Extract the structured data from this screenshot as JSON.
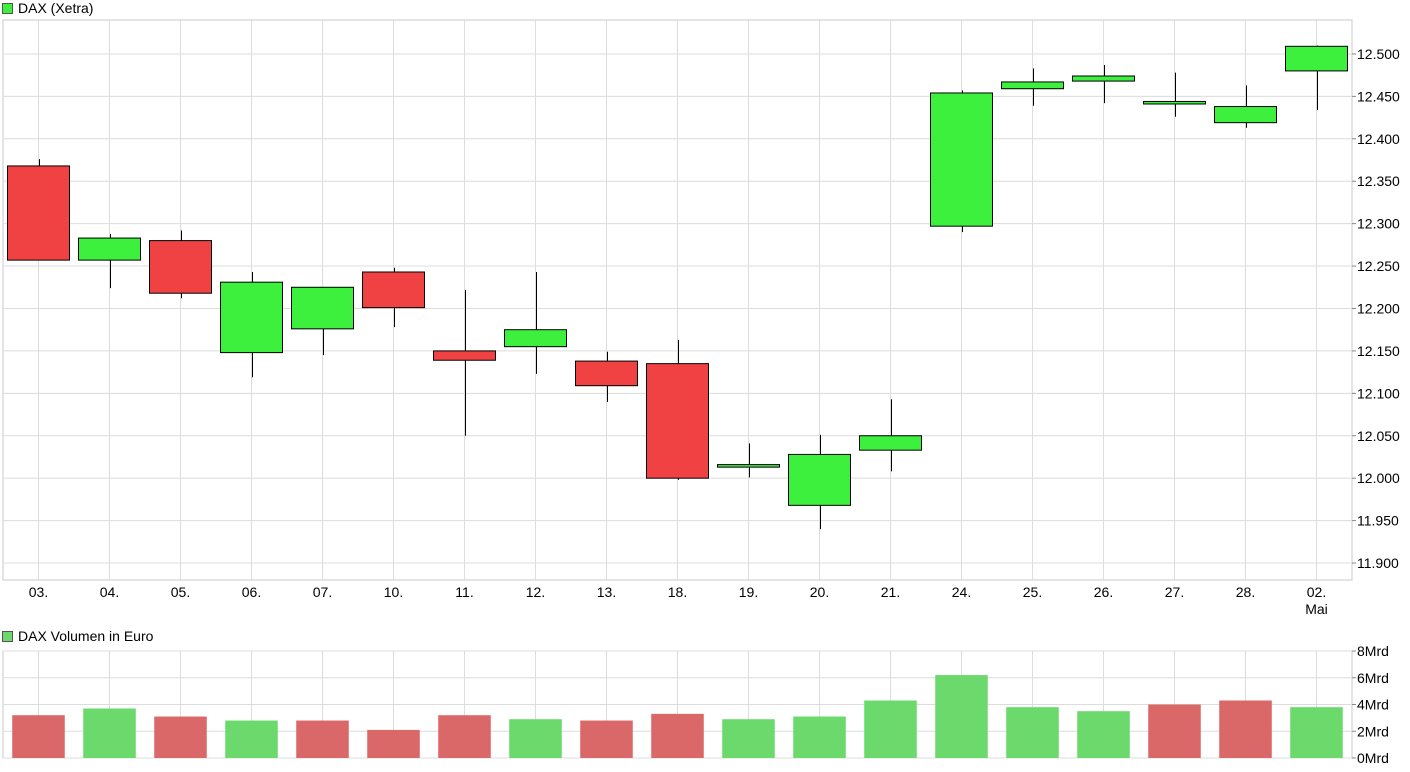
{
  "price_panel": {
    "title": "DAX (Xetra)",
    "legend_color": "#3ef03e"
  },
  "volume_panel": {
    "title": "DAX Volumen in Euro",
    "legend_color": "#6cd96c"
  },
  "colors": {
    "up": "#3ef03e",
    "down": "#f04242",
    "volume_up": "#6cd96c",
    "volume_down": "#db6868",
    "grid": "#dcdcdc",
    "frame": "#c8c8c8"
  },
  "chart_data": [
    {
      "type": "candlestick",
      "title": "DAX (Xetra)",
      "categories": [
        "03.",
        "04.",
        "05.",
        "06.",
        "07.",
        "10.",
        "11.",
        "12.",
        "13.",
        "18.",
        "19.",
        "20.",
        "21.",
        "24.",
        "25.",
        "26.",
        "27.",
        "28.",
        "02."
      ],
      "category_sublabels": [
        "",
        "",
        "",
        "",
        "",
        "",
        "",
        "",
        "",
        "",
        "",
        "",
        "",
        "",
        "",
        "",
        "",
        "",
        "Mai"
      ],
      "y_ticks": [
        "11.900",
        "11.950",
        "12.000",
        "12.050",
        "12.100",
        "12.150",
        "12.200",
        "12.250",
        "12.300",
        "12.350",
        "12.400",
        "12.450",
        "12.500"
      ],
      "ylim": [
        11880,
        12540
      ],
      "y_tick_values": [
        11900,
        11950,
        12000,
        12050,
        12100,
        12150,
        12200,
        12250,
        12300,
        12350,
        12400,
        12450,
        12500
      ],
      "grid": true,
      "series": [
        {
          "open": [
            12368,
            12257,
            12280,
            12148,
            12176,
            12243,
            12150,
            12155,
            12138,
            12135,
            12013,
            11968,
            12033,
            12297,
            12459,
            12468,
            12441,
            12419,
            12480
          ],
          "high": [
            12376,
            12288,
            12292,
            12243,
            12225,
            12248,
            12222,
            12243,
            12149,
            12163,
            12041,
            12051,
            12093,
            12457,
            12483,
            12487,
            12478,
            12463,
            12510
          ],
          "low": [
            12257,
            12224,
            12212,
            12119,
            12145,
            12178,
            12050,
            12123,
            12090,
            11998,
            12001,
            11940,
            12008,
            12290,
            12439,
            12442,
            12426,
            12413,
            12434
          ],
          "close": [
            12257,
            12283,
            12218,
            12231,
            12225,
            12201,
            12139,
            12175,
            12109,
            12000,
            12016,
            12028,
            12050,
            12454,
            12467,
            12474,
            12444,
            12438,
            12509
          ]
        }
      ]
    },
    {
      "type": "bar",
      "title": "DAX Volumen in Euro",
      "unit": "Mrd",
      "categories": [
        "03.",
        "04.",
        "05.",
        "06.",
        "07.",
        "10.",
        "11.",
        "12.",
        "13.",
        "18.",
        "19.",
        "20.",
        "21.",
        "24.",
        "25.",
        "26.",
        "27.",
        "28.",
        "02."
      ],
      "values": [
        3.2,
        3.7,
        3.1,
        2.8,
        2.8,
        2.1,
        3.2,
        2.9,
        2.8,
        3.3,
        2.9,
        3.1,
        4.3,
        6.2,
        3.8,
        3.5,
        4.0,
        4.3,
        3.8
      ],
      "direction": [
        "down",
        "up",
        "down",
        "up",
        "down",
        "down",
        "down",
        "up",
        "down",
        "down",
        "up",
        "up",
        "up",
        "up",
        "up",
        "up",
        "down",
        "down",
        "up"
      ],
      "y_ticks": [
        "0Mrd",
        "2Mrd",
        "4Mrd",
        "6Mrd",
        "8Mrd"
      ],
      "y_tick_values": [
        0,
        2,
        4,
        6,
        8
      ],
      "ylim": [
        0,
        8
      ],
      "grid": true
    }
  ]
}
